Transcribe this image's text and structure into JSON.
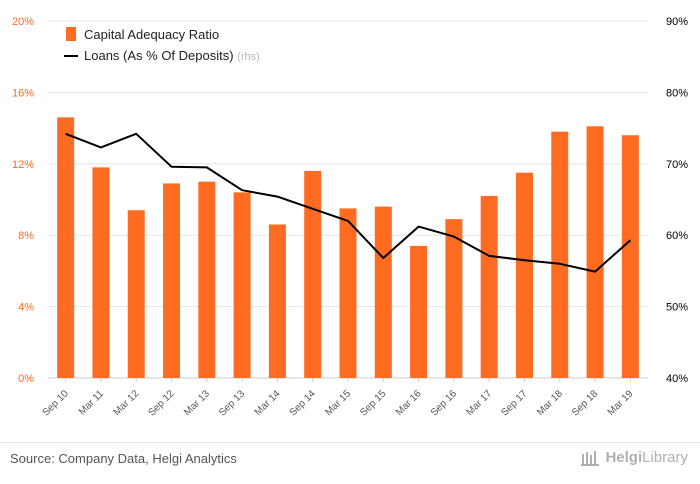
{
  "chart_data": {
    "type": "bar",
    "categories": [
      "Sep 10",
      "Mar 11",
      "Mar 12",
      "Sep 12",
      "Mar 13",
      "Sep 13",
      "Mar 14",
      "Sep 14",
      "Mar 15",
      "Sep 15",
      "Mar 16",
      "Sep 16",
      "Mar 17",
      "Sep 17",
      "Mar 18",
      "Sep 18",
      "Mar 19"
    ],
    "series": [
      {
        "name": "Capital Adequacy Ratio",
        "type": "bar",
        "axis": "left",
        "color": "#ff6b21",
        "values": [
          14.6,
          11.8,
          9.4,
          10.9,
          11.0,
          10.4,
          8.6,
          11.6,
          9.5,
          9.6,
          7.4,
          8.9,
          10.2,
          11.5,
          13.8,
          14.1,
          13.6
        ]
      },
      {
        "name": "Loans (As % Of Deposits)",
        "suffix": "(rhs)",
        "type": "line",
        "axis": "right",
        "color": "#000000",
        "values": [
          74.2,
          72.3,
          74.2,
          69.6,
          69.5,
          66.3,
          65.4,
          63.7,
          62.0,
          56.8,
          61.2,
          59.8,
          57.1,
          56.5,
          56.0,
          54.9,
          59.3
        ]
      }
    ],
    "yaxis_left": {
      "ticks": [
        "0%",
        "4%",
        "8%",
        "12%",
        "16%",
        "20%"
      ],
      "min": 0,
      "max": 20,
      "color": "#ff6b21"
    },
    "yaxis_right": {
      "ticks": [
        "40%",
        "50%",
        "60%",
        "70%",
        "80%",
        "90%"
      ],
      "min": 40,
      "max": 90,
      "color": "#000000"
    },
    "grid": true,
    "legend_position": "top-left"
  },
  "footer": {
    "source": "Source: Company Data, Helgi Analytics",
    "logo_word1": "Helgi",
    "logo_word2": "Library"
  }
}
